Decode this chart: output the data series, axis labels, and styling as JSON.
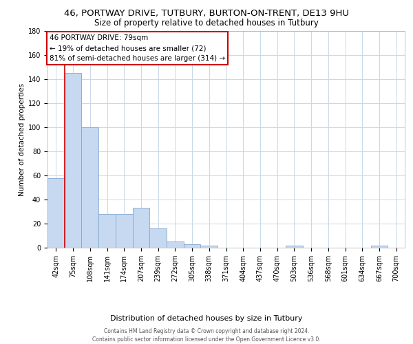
{
  "title1": "46, PORTWAY DRIVE, TUTBURY, BURTON-ON-TRENT, DE13 9HU",
  "title2": "Size of property relative to detached houses in Tutbury",
  "xlabel": "Distribution of detached houses by size in Tutbury",
  "ylabel": "Number of detached properties",
  "bar_labels": [
    "42sqm",
    "75sqm",
    "108sqm",
    "141sqm",
    "174sqm",
    "207sqm",
    "239sqm",
    "272sqm",
    "305sqm",
    "338sqm",
    "371sqm",
    "404sqm",
    "437sqm",
    "470sqm",
    "503sqm",
    "536sqm",
    "568sqm",
    "601sqm",
    "634sqm",
    "667sqm",
    "700sqm"
  ],
  "bar_values": [
    58,
    145,
    100,
    28,
    28,
    33,
    16,
    5,
    3,
    2,
    0,
    0,
    0,
    0,
    2,
    0,
    0,
    0,
    0,
    2,
    0
  ],
  "bar_color": "#c6d9f0",
  "bar_edge_color": "#7fa8d1",
  "red_line_x": 0.5,
  "annotation_line1": "46 PORTWAY DRIVE: 79sqm",
  "annotation_line2": "← 19% of detached houses are smaller (72)",
  "annotation_line3": "81% of semi-detached houses are larger (314) →",
  "annotation_box_color": "#ffffff",
  "annotation_box_edge": "#cc0000",
  "footer": "Contains HM Land Registry data © Crown copyright and database right 2024.\nContains public sector information licensed under the Open Government Licence v3.0.",
  "ylim": [
    0,
    180
  ],
  "yticks": [
    0,
    20,
    40,
    60,
    80,
    100,
    120,
    140,
    160,
    180
  ],
  "background_color": "#ffffff",
  "grid_color": "#c8d8e8",
  "title1_fontsize": 9.5,
  "title2_fontsize": 8.5,
  "xlabel_fontsize": 8,
  "ylabel_fontsize": 7.5,
  "tick_fontsize": 7,
  "annotation_fontsize": 7.5,
  "footer_fontsize": 5.5
}
